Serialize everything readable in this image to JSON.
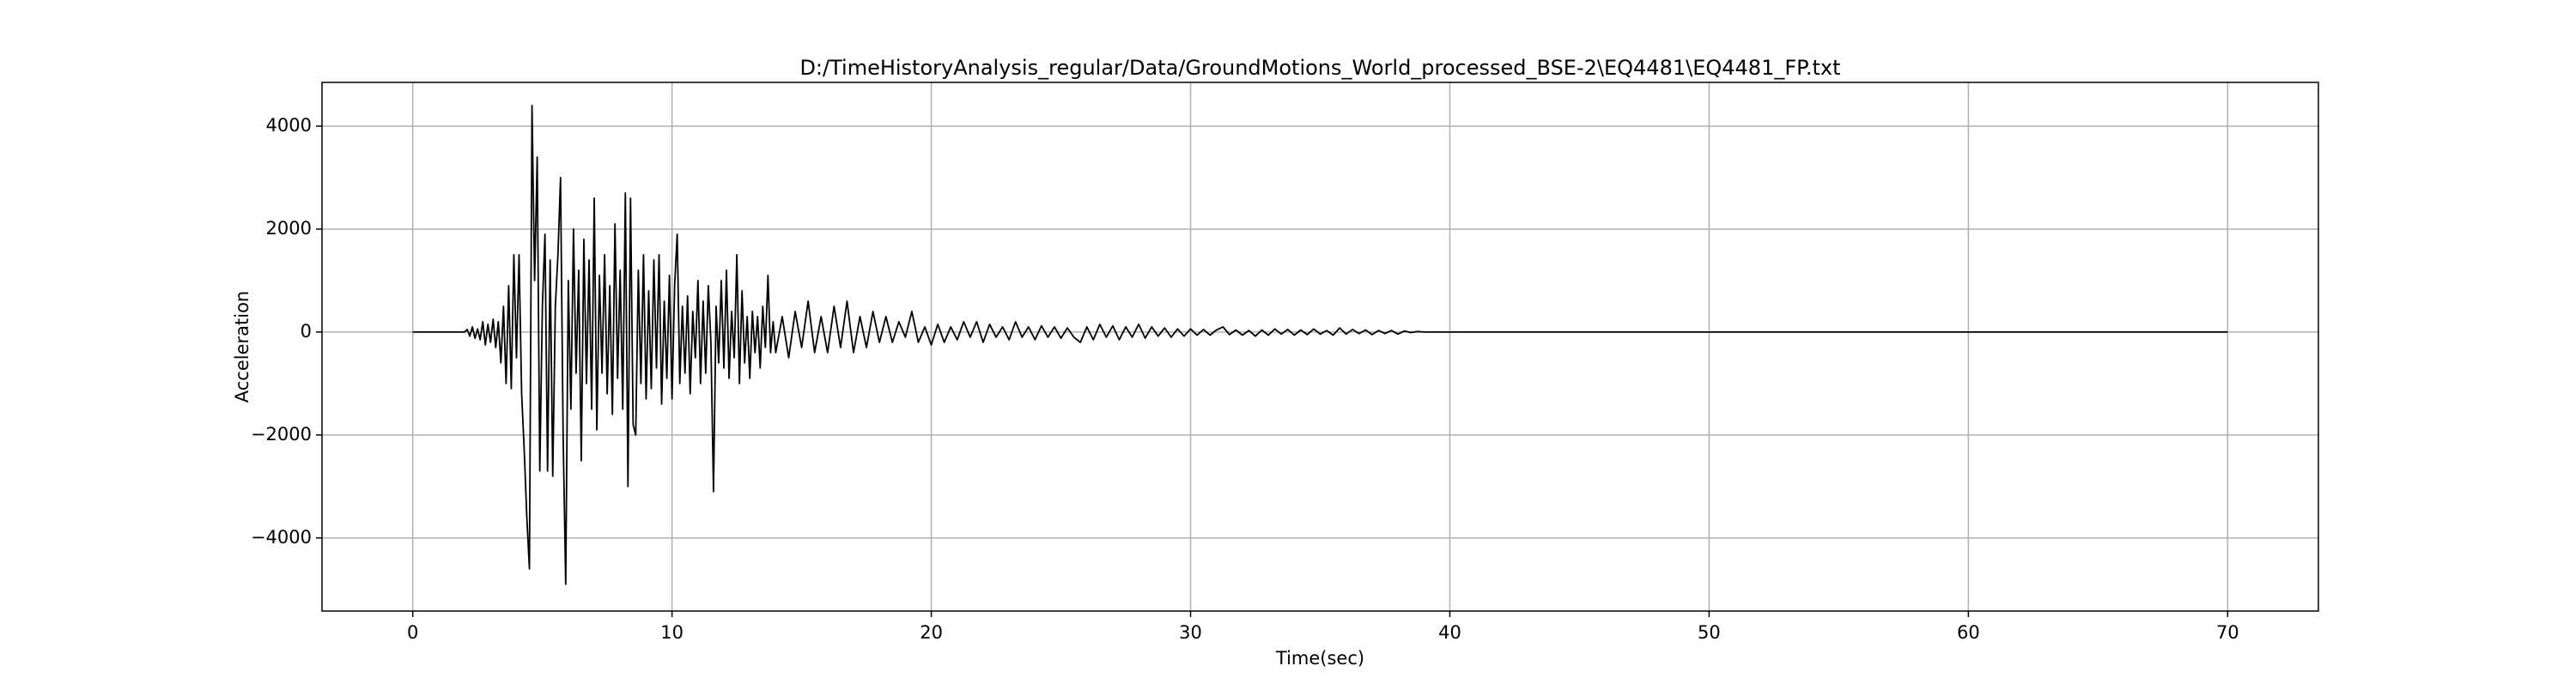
{
  "chart_data": {
    "type": "line",
    "title": "D:/TimeHistoryAnalysis_regular/Data/GroundMotions_World_processed_BSE-2\\EQ4481\\EQ4481_FP.txt",
    "xlabel": "Time(sec)",
    "ylabel": "Acceleration",
    "color": "#000000",
    "grid": true,
    "xlim": [
      -3.5,
      73.5
    ],
    "ylim": [
      -5420,
      4850
    ],
    "xticks": [
      0,
      10,
      20,
      30,
      40,
      50,
      60,
      70
    ],
    "yticks": [
      {
        "value": -4000,
        "label": "−4000"
      },
      {
        "value": -2000,
        "label": "−2000"
      },
      0,
      2000,
      4000
    ],
    "x": [
      0,
      2.0,
      2.1,
      2.2,
      2.3,
      2.4,
      2.5,
      2.6,
      2.7,
      2.8,
      2.9,
      3.0,
      3.1,
      3.2,
      3.3,
      3.4,
      3.5,
      3.6,
      3.7,
      3.8,
      3.9,
      4.0,
      4.1,
      4.2,
      4.3,
      4.4,
      4.5,
      4.6,
      4.7,
      4.8,
      4.9,
      5.0,
      5.1,
      5.2,
      5.3,
      5.4,
      5.5,
      5.6,
      5.7,
      5.8,
      5.9,
      6.0,
      6.1,
      6.2,
      6.3,
      6.4,
      6.5,
      6.6,
      6.7,
      6.8,
      6.9,
      7.0,
      7.1,
      7.2,
      7.3,
      7.4,
      7.5,
      7.6,
      7.7,
      7.8,
      7.9,
      8.0,
      8.1,
      8.2,
      8.3,
      8.4,
      8.5,
      8.6,
      8.7,
      8.8,
      8.9,
      9.0,
      9.1,
      9.2,
      9.3,
      9.4,
      9.5,
      9.6,
      9.7,
      9.8,
      9.9,
      10.0,
      10.1,
      10.2,
      10.3,
      10.4,
      10.5,
      10.6,
      10.7,
      10.8,
      10.9,
      11.0,
      11.1,
      11.2,
      11.3,
      11.4,
      11.5,
      11.6,
      11.7,
      11.8,
      11.9,
      12.0,
      12.1,
      12.2,
      12.3,
      12.4,
      12.5,
      12.6,
      12.7,
      12.8,
      12.9,
      13.0,
      13.1,
      13.2,
      13.3,
      13.4,
      13.5,
      13.6,
      13.7,
      13.8,
      13.9,
      14.0,
      14.25,
      14.5,
      14.75,
      15.0,
      15.25,
      15.5,
      15.75,
      16.0,
      16.25,
      16.5,
      16.75,
      17.0,
      17.25,
      17.5,
      17.75,
      18.0,
      18.25,
      18.5,
      18.75,
      19.0,
      19.25,
      19.5,
      19.75,
      20.0,
      20.25,
      20.5,
      20.75,
      21.0,
      21.25,
      21.5,
      21.75,
      22.0,
      22.25,
      22.5,
      22.75,
      23.0,
      23.25,
      23.5,
      23.75,
      24.0,
      24.25,
      24.5,
      24.75,
      25.0,
      25.25,
      25.5,
      25.75,
      26.0,
      26.25,
      26.5,
      26.75,
      27.0,
      27.25,
      27.5,
      27.75,
      28.0,
      28.25,
      28.5,
      28.75,
      29.0,
      29.25,
      29.5,
      29.75,
      30.0,
      30.25,
      30.5,
      30.75,
      31.0,
      31.25,
      31.5,
      31.75,
      32.0,
      32.25,
      32.5,
      32.75,
      33.0,
      33.25,
      33.5,
      33.75,
      34.0,
      34.25,
      34.5,
      34.75,
      35.0,
      35.25,
      35.5,
      35.75,
      36.0,
      36.25,
      36.5,
      36.75,
      37.0,
      37.25,
      37.5,
      37.75,
      38.0,
      38.25,
      38.5,
      38.75,
      39.0,
      70
    ],
    "values": [
      0,
      0,
      50,
      -80,
      100,
      -120,
      60,
      -150,
      200,
      -250,
      150,
      -200,
      250,
      -300,
      200,
      -600,
      500,
      -1000,
      900,
      -1100,
      1500,
      -500,
      1500,
      -1200,
      -2300,
      -3600,
      -4600,
      4400,
      1000,
      3400,
      -2700,
      500,
      1900,
      -2700,
      1400,
      -2800,
      500,
      1500,
      3000,
      -2000,
      -4900,
      1000,
      -1500,
      2000,
      -800,
      1200,
      -2500,
      1800,
      -1000,
      1400,
      -1500,
      2600,
      -1900,
      1100,
      -800,
      1500,
      -1200,
      900,
      -1600,
      2100,
      -900,
      1200,
      -1500,
      2700,
      -3000,
      2600,
      -1800,
      -2000,
      1200,
      -1000,
      1500,
      -1300,
      800,
      -1100,
      1400,
      -700,
      1500,
      -1400,
      600,
      -900,
      1100,
      -1300,
      900,
      1900,
      -1000,
      500,
      -800,
      700,
      -1200,
      400,
      -500,
      1000,
      -1000,
      600,
      -800,
      900,
      -200,
      -3100,
      500,
      -600,
      1000,
      -700,
      1200,
      -900,
      400,
      -500,
      1500,
      -1000,
      800,
      -600,
      300,
      -900,
      400,
      -400,
      300,
      -700,
      500,
      -300,
      1100,
      -400,
      200,
      -400,
      300,
      -500,
      400,
      -300,
      600,
      -400,
      300,
      -400,
      500,
      -300,
      600,
      -400,
      300,
      -300,
      400,
      -200,
      300,
      -200,
      200,
      -100,
      400,
      -200,
      100,
      -250,
      150,
      -200,
      100,
      -150,
      200,
      -100,
      200,
      -200,
      150,
      -100,
      100,
      -150,
      200,
      -100,
      100,
      -150,
      120,
      -100,
      100,
      -120,
      80,
      -100,
      -200,
      100,
      -150,
      150,
      -100,
      120,
      -150,
      100,
      -100,
      150,
      -120,
      100,
      -80,
      80,
      -100,
      60,
      -80,
      60,
      -60,
      50,
      -60,
      40,
      100,
      -50,
      40,
      -60,
      30,
      -80,
      40,
      -60,
      60,
      -40,
      50,
      -60,
      40,
      -50,
      60,
      -40,
      30,
      -60,
      80,
      -40,
      50,
      -30,
      40,
      -50,
      30,
      -30,
      30,
      -40,
      20,
      -10,
      10,
      0,
      0
    ]
  }
}
